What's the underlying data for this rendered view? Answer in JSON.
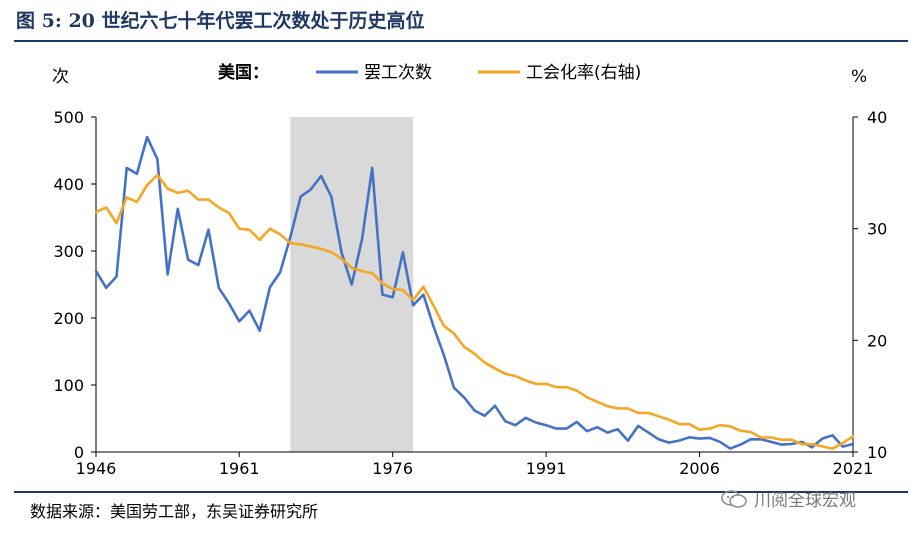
{
  "header": {
    "title": "图 5:  20 世纪六七十年代罢工次数处于历史高位"
  },
  "source": {
    "text": "数据来源：美国劳工部，东吴证券研究所"
  },
  "watermark": {
    "text": "川阅全球宏观"
  },
  "chart_data": {
    "type": "line",
    "legend_prefix": "美国：",
    "legend_position": "top",
    "y_left_unit": "次",
    "y_right_unit": "%",
    "xlim": [
      1947,
      2021
    ],
    "x_ticks": [
      1946,
      1961,
      1976,
      1991,
      2006,
      2021
    ],
    "ylim_left": [
      0,
      500
    ],
    "y_ticks_left": [
      0,
      100,
      200,
      300,
      400,
      500
    ],
    "ylim_right": [
      10,
      40
    ],
    "y_ticks_right": [
      10,
      20,
      30,
      40
    ],
    "grid": false,
    "shaded_region": [
      1966,
      1978
    ],
    "colors": {
      "strikes": "#4472c4",
      "union": "#f5a623",
      "shade": "#d9d9d9"
    },
    "series": [
      {
        "name": "罢工次数",
        "axis": "left",
        "x": [
          1947,
          1948,
          1949,
          1950,
          1951,
          1952,
          1953,
          1954,
          1955,
          1956,
          1957,
          1958,
          1959,
          1960,
          1961,
          1962,
          1963,
          1964,
          1965,
          1966,
          1967,
          1968,
          1969,
          1970,
          1971,
          1972,
          1973,
          1974,
          1975,
          1976,
          1977,
          1978,
          1979,
          1980,
          1981,
          1982,
          1983,
          1984,
          1985,
          1986,
          1987,
          1988,
          1989,
          1990,
          1991,
          1992,
          1993,
          1994,
          1995,
          1996,
          1997,
          1998,
          1999,
          2000,
          2001,
          2002,
          2003,
          2004,
          2005,
          2006,
          2007,
          2008,
          2009,
          2010,
          2011,
          2012,
          2013,
          2014,
          2015,
          2016,
          2017,
          2018,
          2019,
          2020,
          2021
        ],
        "values": [
          270,
          245,
          262,
          424,
          415,
          470,
          437,
          265,
          363,
          287,
          279,
          332,
          245,
          222,
          195,
          211,
          181,
          246,
          268,
          321,
          381,
          392,
          412,
          381,
          298,
          250,
          317,
          424,
          235,
          231,
          298,
          219,
          235,
          187,
          145,
          96,
          81,
          62,
          54,
          69,
          46,
          40,
          51,
          44,
          40,
          35,
          35,
          45,
          31,
          37,
          29,
          34,
          17,
          39,
          29,
          19,
          14,
          17,
          22,
          20,
          21,
          15,
          5,
          11,
          19,
          19,
          15,
          11,
          12,
          15,
          7,
          20,
          25,
          8,
          12
        ]
      },
      {
        "name": "工会化率(右轴)",
        "axis": "right",
        "x": [
          1947,
          1948,
          1949,
          1950,
          1951,
          1952,
          1953,
          1954,
          1955,
          1956,
          1957,
          1958,
          1959,
          1960,
          1961,
          1962,
          1963,
          1964,
          1965,
          1966,
          1967,
          1968,
          1969,
          1970,
          1971,
          1972,
          1973,
          1974,
          1975,
          1976,
          1977,
          1978,
          1979,
          1980,
          1981,
          1982,
          1983,
          1984,
          1985,
          1986,
          1987,
          1988,
          1989,
          1990,
          1991,
          1992,
          1993,
          1994,
          1995,
          1996,
          1997,
          1998,
          1999,
          2000,
          2001,
          2002,
          2003,
          2004,
          2005,
          2006,
          2007,
          2008,
          2009,
          2010,
          2011,
          2012,
          2013,
          2014,
          2015,
          2016,
          2017,
          2018,
          2019,
          2020,
          2021
        ],
        "values": [
          31.5,
          31.9,
          30.5,
          32.8,
          32.4,
          33.9,
          34.8,
          33.6,
          33.2,
          33.4,
          32.6,
          32.6,
          31.9,
          31.4,
          30.0,
          29.9,
          29.0,
          30.0,
          29.5,
          28.7,
          28.6,
          28.4,
          28.2,
          27.9,
          27.3,
          26.5,
          26.2,
          26.0,
          25.1,
          24.6,
          24.5,
          23.6,
          24.8,
          23.1,
          21.3,
          20.6,
          19.4,
          18.8,
          18.0,
          17.5,
          17.0,
          16.8,
          16.4,
          16.1,
          16.1,
          15.8,
          15.8,
          15.5,
          14.9,
          14.5,
          14.1,
          13.9,
          13.9,
          13.5,
          13.5,
          13.2,
          12.9,
          12.5,
          12.5,
          12.0,
          12.1,
          12.4,
          12.3,
          11.9,
          11.8,
          11.3,
          11.3,
          11.1,
          11.1,
          10.7,
          10.7,
          10.5,
          10.3,
          10.8,
          11.4
        ]
      }
    ]
  }
}
